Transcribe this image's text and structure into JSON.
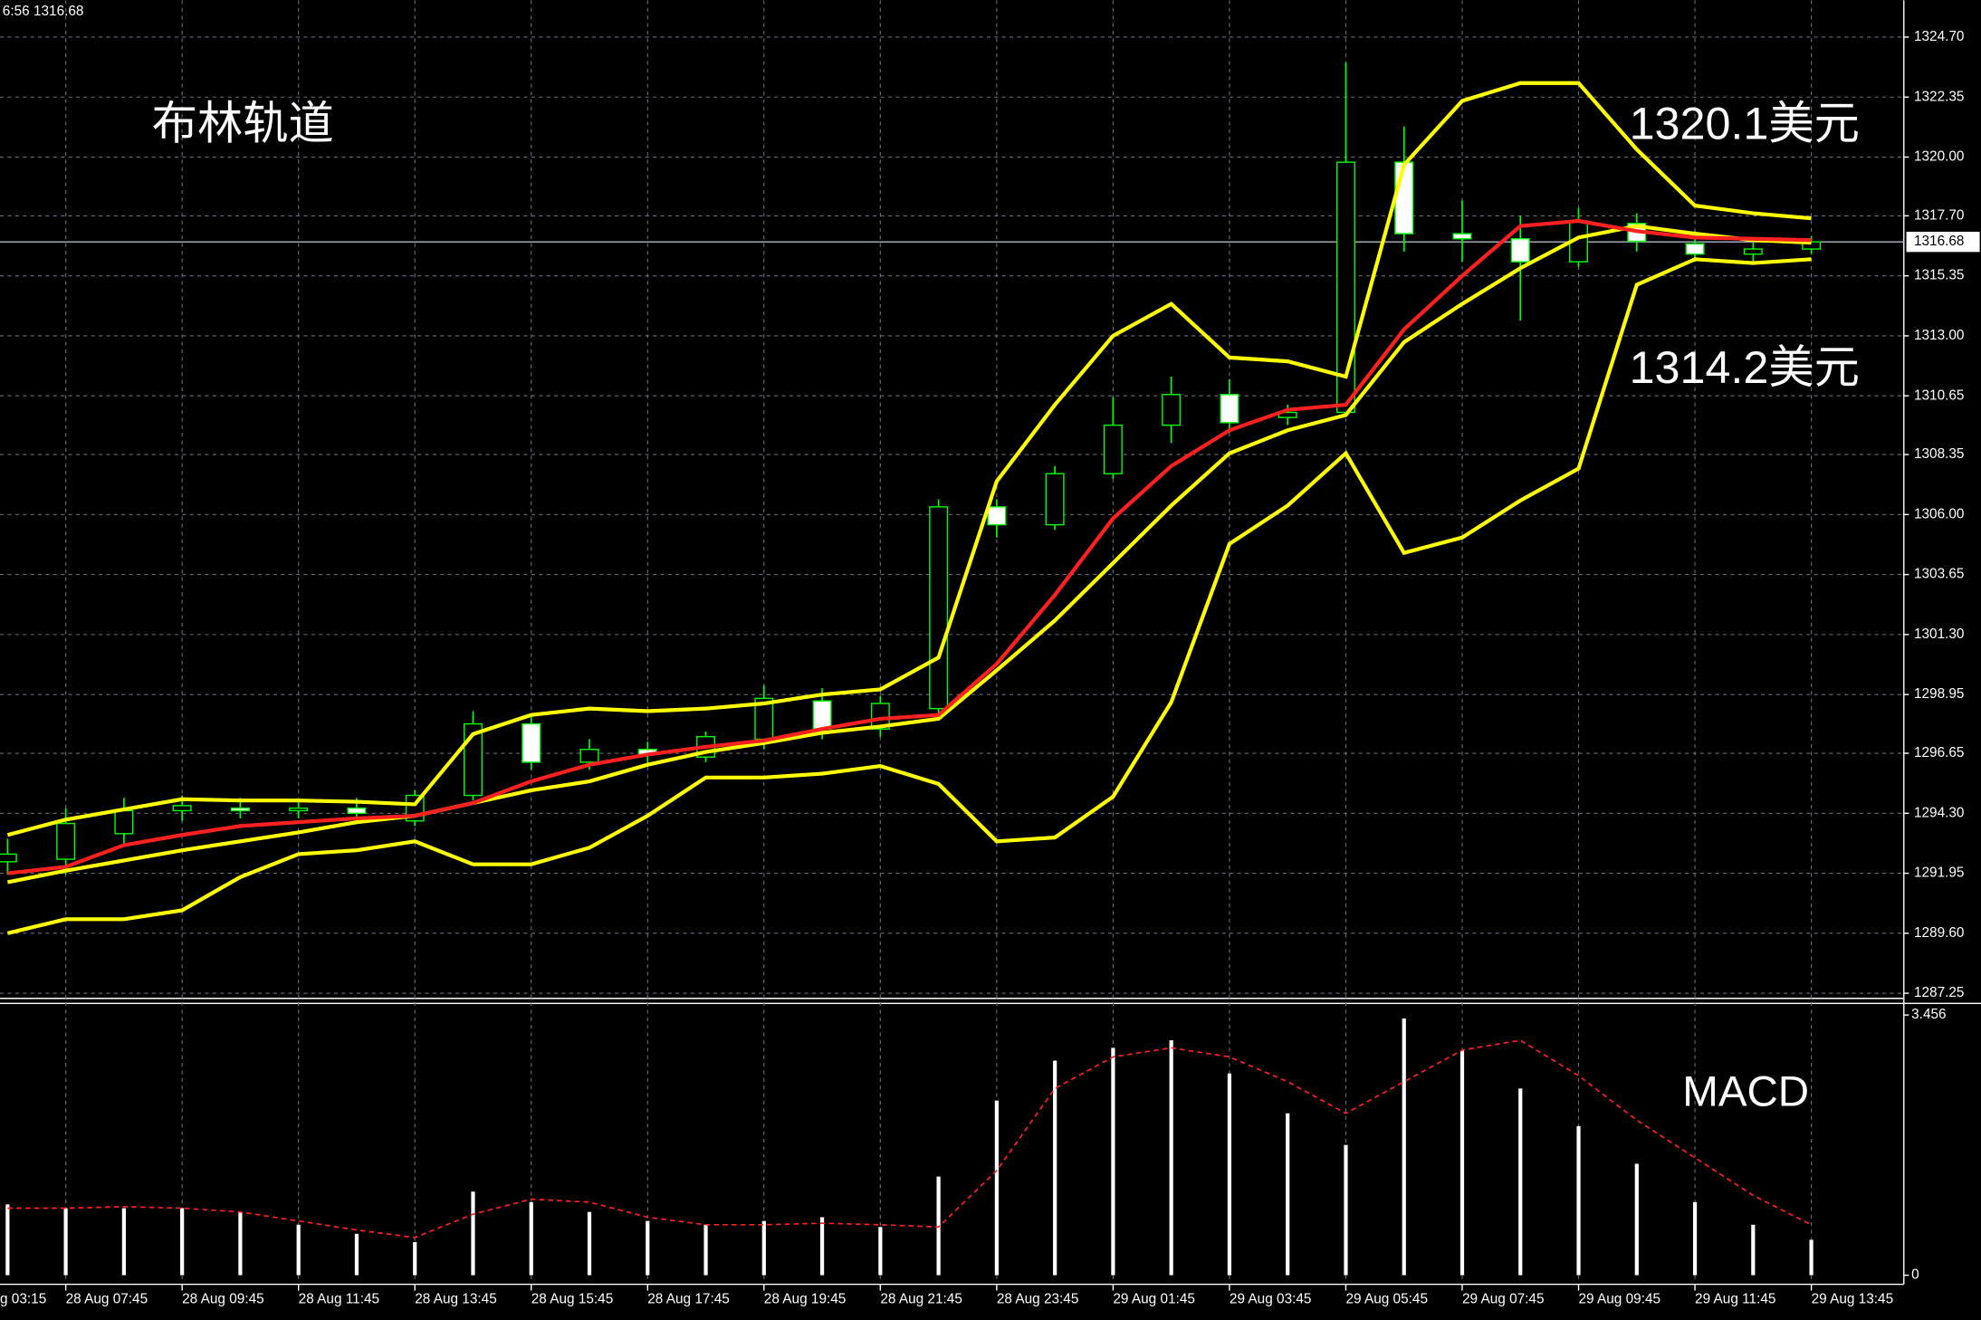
{
  "top_left_text": "6:56 1316.68",
  "x_edge_label": "g 03:15",
  "chart_data": [
    {
      "type": "candlestick",
      "title": "布林轨道",
      "annotations": [
        "1320.1美元",
        "1314.2美元"
      ],
      "x": [
        6.75,
        7.75,
        8.75,
        9.75,
        10.75,
        11.75,
        12.75,
        13.75,
        14.75,
        15.75,
        16.75,
        17.75,
        18.75,
        19.75,
        20.75,
        21.75,
        22.75,
        23.75,
        24.75,
        25.75,
        26.75,
        27.75,
        28.75,
        29.75,
        30.75,
        31.75,
        32.75,
        33.75,
        34.75,
        35.75,
        36.75,
        37.75
      ],
      "xlim": [
        6.62,
        39.34
      ],
      "ylim": [
        1287.0,
        1326.14
      ],
      "yticks": [
        {
          "value": 1324.7,
          "label": "1324.70"
        },
        1322.35,
        {
          "value": 1320,
          "label": "1320.00"
        },
        {
          "value": 1317.7,
          "label": "1317.70"
        },
        1315.35,
        {
          "value": 1313,
          "label": "1313.00"
        },
        1310.65,
        1308.35,
        {
          "value": 1306,
          "label": "1306.00"
        },
        1303.65,
        {
          "value": 1301.3,
          "label": "1301.30"
        },
        1298.95,
        1296.65,
        {
          "value": 1294.3,
          "label": "1294.30"
        },
        1291.95,
        {
          "value": 1289.6,
          "label": "1289.60"
        },
        1287.25
      ],
      "current_price": 1316.68,
      "grid": true,
      "up_color": "#000000",
      "down_color": "#ffffff",
      "wick_color": "#00ff00",
      "open": [
        1292.4,
        1292.5,
        1293.5,
        1294.4,
        1294.5,
        1294.4,
        1294.5,
        1294.0,
        1295.0,
        1297.8,
        1296.3,
        1296.8,
        1296.5,
        1297.2,
        1298.7,
        1297.6,
        1298.4,
        1306.3,
        1305.6,
        1307.6,
        1309.5,
        1310.7,
        1309.8,
        1310.0,
        1319.8,
        1317.0,
        1316.8,
        1315.9,
        1317.4,
        1316.6,
        1316.2,
        1316.4
      ],
      "high": [
        1293.3,
        1294.5,
        1294.9,
        1295.0,
        1294.9,
        1294.8,
        1294.9,
        1295.2,
        1298.3,
        1298.2,
        1297.2,
        1297.1,
        1297.5,
        1299.3,
        1299.2,
        1298.9,
        1306.6,
        1306.6,
        1307.9,
        1310.6,
        1311.4,
        1311.3,
        1310.3,
        1323.7,
        1321.2,
        1318.3,
        1317.7,
        1318.0,
        1317.8,
        1317.1,
        1316.7,
        1316.9
      ],
      "low": [
        1291.9,
        1291.9,
        1293.1,
        1294.0,
        1294.1,
        1294.1,
        1294.0,
        1293.8,
        1294.8,
        1296.0,
        1296.0,
        1296.2,
        1296.3,
        1296.8,
        1297.2,
        1297.3,
        1298.0,
        1305.1,
        1305.4,
        1307.4,
        1308.8,
        1309.2,
        1309.5,
        1309.9,
        1316.3,
        1315.9,
        1313.6,
        1315.7,
        1316.3,
        1315.9,
        1315.9,
        1316.2
      ],
      "close": [
        1292.7,
        1293.9,
        1294.4,
        1294.6,
        1294.4,
        1294.5,
        1294.3,
        1295.0,
        1297.8,
        1296.3,
        1296.8,
        1296.6,
        1297.3,
        1298.8,
        1297.6,
        1298.6,
        1306.3,
        1305.6,
        1307.6,
        1309.5,
        1310.7,
        1309.6,
        1310.0,
        1319.8,
        1317.0,
        1316.8,
        1315.9,
        1317.5,
        1316.7,
        1316.2,
        1316.4,
        1316.68
      ],
      "lines": [
        {
          "color": "#ffff00",
          "values": [
            1293.45,
            1294.05,
            1294.45,
            1294.85,
            1294.8,
            1294.8,
            1294.75,
            1294.65,
            1297.4,
            1298.15,
            1298.4,
            1298.3,
            1298.4,
            1298.6,
            1298.95,
            1299.15,
            1300.4,
            1307.3,
            1310.3,
            1313.0,
            1314.25,
            1312.15,
            1312.0,
            1311.4,
            1319.7,
            1322.2,
            1322.9,
            1322.9,
            1320.3,
            1318.1,
            1317.8,
            1317.6
          ]
        },
        {
          "color": "#ffff00",
          "values": [
            1289.6,
            1290.15,
            1290.15,
            1290.5,
            1291.8,
            1292.7,
            1292.85,
            1293.2,
            1292.3,
            1292.3,
            1292.95,
            1294.2,
            1295.7,
            1295.7,
            1295.85,
            1296.15,
            1295.45,
            1293.2,
            1293.35,
            1294.95,
            1298.65,
            1304.85,
            1306.35,
            1308.4,
            1304.5,
            1305.1,
            1306.55,
            1307.8,
            1315.0,
            1316.0,
            1315.85,
            1316.0
          ]
        },
        {
          "color": "#ffff00",
          "values": [
            1291.6,
            1292.05,
            1292.45,
            1292.85,
            1293.2,
            1293.55,
            1293.95,
            1294.2,
            1294.7,
            1295.2,
            1295.55,
            1296.2,
            1296.7,
            1297.05,
            1297.45,
            1297.7,
            1298.0,
            1299.9,
            1301.85,
            1304.1,
            1306.35,
            1308.4,
            1309.3,
            1309.9,
            1312.75,
            1314.25,
            1315.65,
            1316.85,
            1317.3,
            1317.0,
            1316.75,
            1316.65
          ]
        },
        {
          "color": "#ff2020",
          "values": [
            1291.95,
            1292.2,
            1293.05,
            1293.45,
            1293.8,
            1293.95,
            1294.1,
            1294.2,
            1294.7,
            1295.55,
            1296.2,
            1296.6,
            1296.9,
            1297.15,
            1297.6,
            1298.0,
            1298.15,
            1300.15,
            1302.85,
            1305.85,
            1307.9,
            1309.3,
            1310.1,
            1310.3,
            1313.25,
            1315.35,
            1317.3,
            1317.5,
            1317.1,
            1316.85,
            1316.8,
            1316.75
          ]
        }
      ]
    },
    {
      "type": "macd",
      "title": "MACD",
      "ylim": [
        -0.07,
        3.61
      ],
      "yticks": [
        3.456,
        0
      ],
      "xticks": [
        {
          "value": 7.75,
          "label": "28 Aug 07:45"
        },
        {
          "value": 9.75,
          "label": "28 Aug 09:45"
        },
        {
          "value": 11.75,
          "label": "28 Aug 11:45"
        },
        {
          "value": 13.75,
          "label": "28 Aug 13:45"
        },
        {
          "value": 15.75,
          "label": "28 Aug 15:45"
        },
        {
          "value": 17.75,
          "label": "28 Aug 17:45"
        },
        {
          "value": 19.75,
          "label": "28 Aug 19:45"
        },
        {
          "value": 21.75,
          "label": "28 Aug 21:45"
        },
        {
          "value": 23.75,
          "label": "28 Aug 23:45"
        },
        {
          "value": 25.75,
          "label": "29 Aug 01:45"
        },
        {
          "value": 27.75,
          "label": "29 Aug 03:45"
        },
        {
          "value": 29.75,
          "label": "29 Aug 05:45"
        },
        {
          "value": 31.75,
          "label": "29 Aug 07:45"
        },
        {
          "value": 33.75,
          "label": "29 Aug 09:45"
        },
        {
          "value": 35.75,
          "label": "29 Aug 11:45"
        },
        {
          "value": 37.75,
          "label": "29 Aug 13:45"
        }
      ],
      "histogram": {
        "color": "#ffffff",
        "values": [
          0.94,
          0.89,
          0.89,
          0.89,
          0.84,
          0.67,
          0.55,
          0.44,
          1.11,
          0.97,
          0.84,
          0.72,
          0.67,
          0.72,
          0.77,
          0.64,
          1.31,
          2.32,
          2.85,
          3.02,
          3.12,
          2.68,
          2.15,
          1.73,
          3.41,
          2.99,
          2.48,
          1.98,
          1.48,
          0.97,
          0.67,
          0.47
        ]
      },
      "signal": {
        "color": "#ff2020",
        "values": [
          0.89,
          0.89,
          0.91,
          0.89,
          0.84,
          0.72,
          0.6,
          0.5,
          0.81,
          1.01,
          0.97,
          0.77,
          0.67,
          0.67,
          0.69,
          0.67,
          0.64,
          1.39,
          2.48,
          2.9,
          3.02,
          2.9,
          2.57,
          2.15,
          2.57,
          2.99,
          3.12,
          2.65,
          2.06,
          1.56,
          1.06,
          0.67
        ]
      }
    }
  ]
}
